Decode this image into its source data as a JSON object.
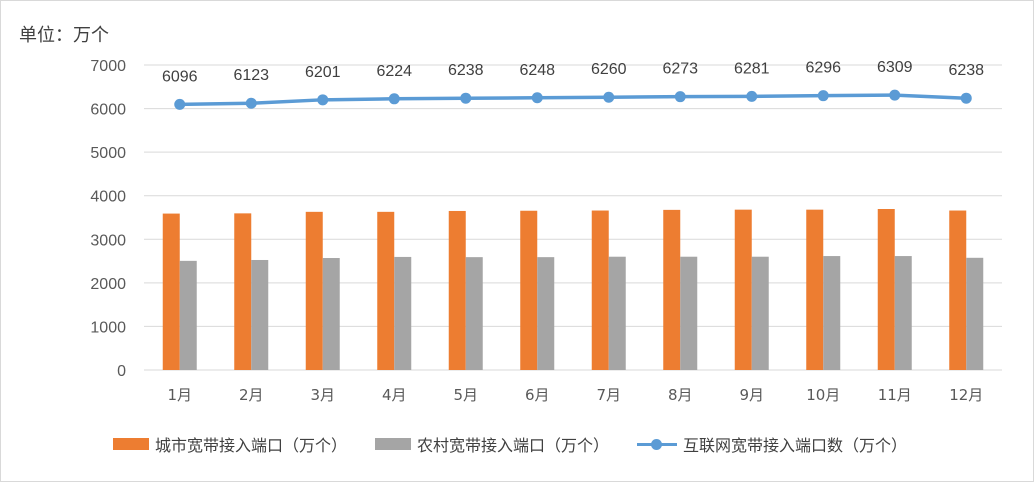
{
  "unit_label": "单位：万个",
  "colors": {
    "urban": "#ED7D31",
    "rural": "#A5A5A5",
    "total": "#5B9BD5",
    "grid": "#d9d9d9"
  },
  "legend": {
    "urban": "城市宽带接入端口（万个）",
    "rural": "农村宽带接入端口（万个）",
    "total": "互联网宽带接入端口数（万个）"
  },
  "chart_data": {
    "type": "bar",
    "categories": [
      "1月",
      "2月",
      "3月",
      "4月",
      "5月",
      "6月",
      "7月",
      "8月",
      "9月",
      "10月",
      "11月",
      "12月"
    ],
    "ylim": [
      0,
      7000
    ],
    "yticks": [
      0,
      1000,
      2000,
      3000,
      4000,
      5000,
      6000,
      7000
    ],
    "grid": true,
    "legend_position": "bottom",
    "series": [
      {
        "name": "城市宽带接入端口（万个）",
        "type": "bar",
        "values": [
          3590,
          3595,
          3630,
          3630,
          3650,
          3655,
          3660,
          3675,
          3680,
          3680,
          3695,
          3660
        ]
      },
      {
        "name": "农村宽带接入端口（万个）",
        "type": "bar",
        "values": [
          2505,
          2525,
          2570,
          2595,
          2590,
          2590,
          2600,
          2600,
          2600,
          2615,
          2615,
          2575
        ]
      },
      {
        "name": "互联网宽带接入端口数（万个）",
        "type": "line",
        "values": [
          6096,
          6123,
          6201,
          6224,
          6238,
          6248,
          6260,
          6273,
          6281,
          6296,
          6309,
          6238
        ]
      }
    ]
  }
}
